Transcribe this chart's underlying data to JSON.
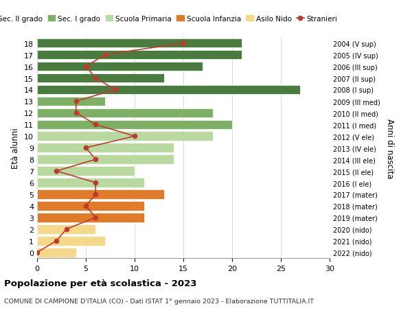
{
  "ages": [
    18,
    17,
    16,
    15,
    14,
    13,
    12,
    11,
    10,
    9,
    8,
    7,
    6,
    5,
    4,
    3,
    2,
    1,
    0
  ],
  "right_labels": [
    "2004 (V sup)",
    "2005 (IV sup)",
    "2006 (III sup)",
    "2007 (II sup)",
    "2008 (I sup)",
    "2009 (III med)",
    "2010 (II med)",
    "2011 (I med)",
    "2012 (V ele)",
    "2013 (IV ele)",
    "2014 (III ele)",
    "2015 (II ele)",
    "2016 (I ele)",
    "2017 (mater)",
    "2018 (mater)",
    "2019 (mater)",
    "2020 (nido)",
    "2021 (nido)",
    "2022 (nido)"
  ],
  "bar_values": [
    21,
    21,
    17,
    13,
    27,
    7,
    18,
    20,
    18,
    14,
    14,
    10,
    11,
    13,
    11,
    11,
    6,
    7,
    4
  ],
  "bar_colors": [
    "#4a7c3f",
    "#4a7c3f",
    "#4a7c3f",
    "#4a7c3f",
    "#4a7c3f",
    "#7db065",
    "#7db065",
    "#7db065",
    "#b8d9a0",
    "#b8d9a0",
    "#b8d9a0",
    "#b8d9a0",
    "#b8d9a0",
    "#e07b2a",
    "#e07b2a",
    "#e07b2a",
    "#f5d98a",
    "#f5d98a",
    "#f5d98a"
  ],
  "stranieri_values": [
    15,
    7,
    5,
    6,
    8,
    4,
    4,
    6,
    10,
    5,
    6,
    2,
    6,
    6,
    5,
    6,
    3,
    2,
    0
  ],
  "title": "Popolazione per età scolastica - 2023",
  "subtitle": "COMUNE DI CAMPIONE D'ITALIA (CO) - Dati ISTAT 1° gennaio 2023 - Elaborazione TUTTITALIA.IT",
  "ylabel_left": "Età alunni",
  "ylabel_right": "Anni di nascita",
  "xlim": [
    0,
    30
  ],
  "xticks": [
    0,
    5,
    10,
    15,
    20,
    25,
    30
  ],
  "legend_labels": [
    "Sec. II grado",
    "Sec. I grado",
    "Scuola Primaria",
    "Scuola Infanzia",
    "Asilo Nido",
    "Stranieri"
  ],
  "legend_colors": [
    "#4a7c3f",
    "#7db065",
    "#b8d9a0",
    "#e07b2a",
    "#f5d98a",
    "#c0392b"
  ],
  "color_red": "#c0392b",
  "bg_color": "#ffffff",
  "grid_color": "#cccccc"
}
